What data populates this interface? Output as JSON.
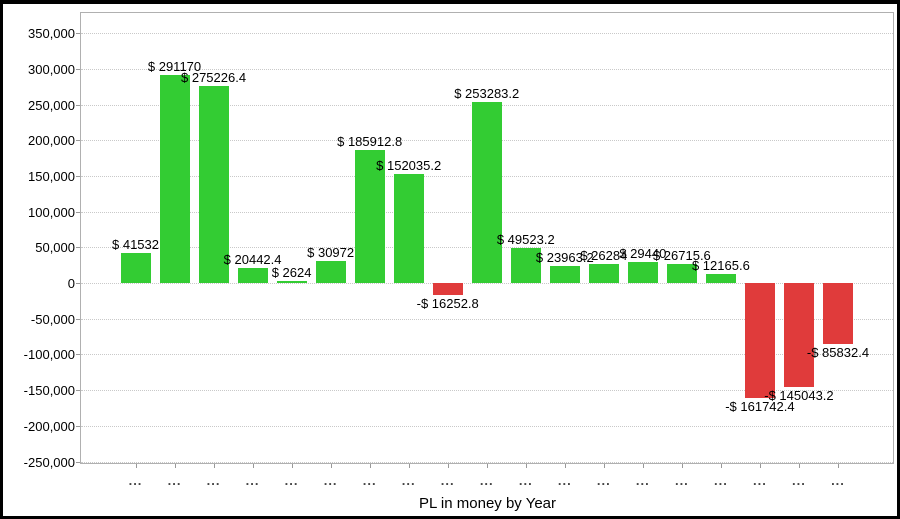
{
  "window": {
    "background": "#ffffff",
    "border_color": "#000000"
  },
  "chart_data": {
    "type": "bar",
    "title": "PL in money by Year",
    "xlabel": "PL in money by Year",
    "ylabel": "",
    "ylim": [
      -250000,
      350000
    ],
    "ytick_step": 50000,
    "ytick_labels": [
      "350,000",
      "300,000",
      "250,000",
      "200,000",
      "150,000",
      "100,000",
      "50,000",
      "0",
      "-50,000",
      "-100,000",
      "-150,000",
      "-200,000",
      "-250,000"
    ],
    "grid": "horizontal-dotted",
    "legend": "none",
    "categories": [
      "...",
      "...",
      "...",
      "...",
      "...",
      "...",
      "...",
      "...",
      "...",
      "...",
      "...",
      "...",
      "...",
      "...",
      "...",
      "...",
      "...",
      "...",
      "..."
    ],
    "values": [
      41532,
      291170,
      275226.4,
      20442.4,
      2624,
      30972,
      185912.8,
      152035.2,
      -16252.8,
      253283.2,
      49523.2,
      23963.2,
      26284,
      29440,
      26715.6,
      12165.6,
      -161742.4,
      -145043.2,
      -85832.4
    ],
    "bar_labels": [
      "$ 41532",
      "$ 291170",
      "$ 275226.4",
      "$ 20442.4",
      "$ 2624",
      "$ 30972",
      "$ 185912.8",
      "$ 152035.2",
      "-$ 16252.8",
      "$ 253283.2",
      "$ 49523.2",
      "$ 23963.2",
      "$ 26284",
      "$ 29440",
      "$ 26715.6",
      "$ 12165.6",
      "-$ 161742.4",
      "-$ 145043.2",
      "-$ 85832.4"
    ],
    "colors": {
      "positive": "#33cc33",
      "negative": "#e03b3b",
      "gridline": "#c9c9c9",
      "plot_border": "#b0b0b0",
      "tick": "#999999",
      "bar_label_text": "#000000",
      "x_tick_text": "#444444"
    }
  }
}
